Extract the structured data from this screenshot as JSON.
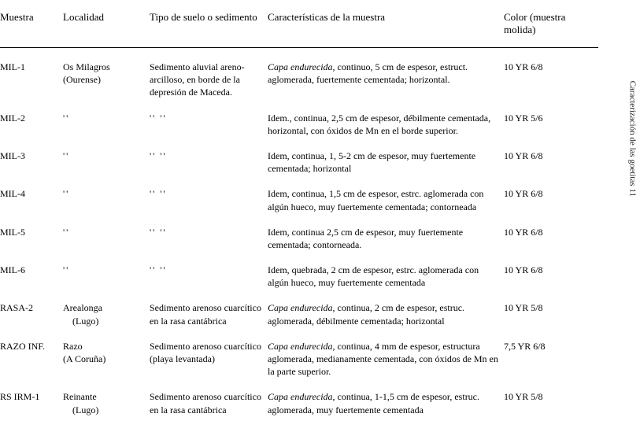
{
  "headers": {
    "muestra": "Muestra",
    "localidad": "Localidad",
    "tipo": "Tipo de suelo\no sedimento",
    "caract": "Características de la muestra",
    "color": "Color\n(muestra molida)"
  },
  "ditto": "''",
  "ditto2": "''    ''",
  "rows": [
    {
      "muestra": "MIL-1",
      "localidad": "Os Milagros\n(Ourense)",
      "tipo": "Sedimento aluvial areno-arcilloso, en borde de la depresión de Maceda.",
      "caract_em": "Capa endurecida",
      "caract_rest": ", continuo, 5 cm de espesor, estruct. aglomerada, fuertemente cementada; horizontal.",
      "color": "10 YR 6/8"
    },
    {
      "muestra": "MIL-2",
      "localidad": "DITTO",
      "tipo": "DITTO2",
      "caract_em": "",
      "caract_rest": "Idem., continua, 2,5 cm de espesor, débilmente cementada, horizontal, con óxidos de Mn en el borde superior.",
      "color": "10 YR 5/6"
    },
    {
      "muestra": "MIL-3",
      "localidad": "DITTO",
      "tipo": "DITTO2",
      "caract_em": "",
      "caract_rest": "Idem, continua, 1, 5-2 cm de espesor, muy fuertemente cementada; horizontal",
      "color": "10 YR 6/8"
    },
    {
      "muestra": "MIL-4",
      "localidad": "DITTO",
      "tipo": "DITTO2",
      "caract_em": "",
      "caract_rest": "Idem, continua, 1,5 cm de espesor, estrc. aglomerada con algún hueco, muy fuertemente cementada; contorneada",
      "color": "10 YR 6/8"
    },
    {
      "muestra": "MIL-5",
      "localidad": "DITTO",
      "tipo": "DITTO2",
      "caract_em": "",
      "caract_rest": "Idem, continua 2,5 cm de espesor, muy fuertemente cementada; contorneada.",
      "color": "10 YR 6/8"
    },
    {
      "muestra": "MIL-6",
      "localidad": "DITTO",
      "tipo": "DITTO2",
      "caract_em": "",
      "caract_rest": "Idem, quebrada, 2 cm de espesor, estrc. aglomerada con algún hueco, muy fuertemente cementada",
      "color": "10 YR 6/8"
    },
    {
      "muestra": "RASA-2",
      "localidad": "Arealonga\n    (Lugo)",
      "tipo": "Sedimento arenoso cuarcítico en la rasa cantábrica",
      "caract_em": "Capa endurecida",
      "caract_rest": ", continua, 2 cm de espesor, estruc. aglomerada, débilmente cementada; horizontal",
      "color": "10 YR 5/8"
    },
    {
      "muestra": "RAZO INF.",
      "localidad": "Razo\n(A Coruña)",
      "tipo": "Sedimento arenoso cuarcítico (playa levantada)",
      "caract_em": "Capa endurecida",
      "caract_rest": ", continua, 4 mm de espesor, estructura aglomerada, medianamente cementada, con óxidos de Mn en la parte superior.",
      "color": "7,5 YR 6/8"
    },
    {
      "muestra": "RS IRM-1",
      "localidad": "Reinante\n    (Lugo)",
      "tipo": "Sedimento arenoso cuarcítico en la rasa cantábrica",
      "caract_em": "Capa endurecida",
      "caract_rest": ", continua, 1-1,5 cm de espesor, estruc. aglomerada, muy fuertemente cementada",
      "color": "10 YR 5/8"
    }
  ],
  "side_caption": "Caracterización de las goetitas    11"
}
